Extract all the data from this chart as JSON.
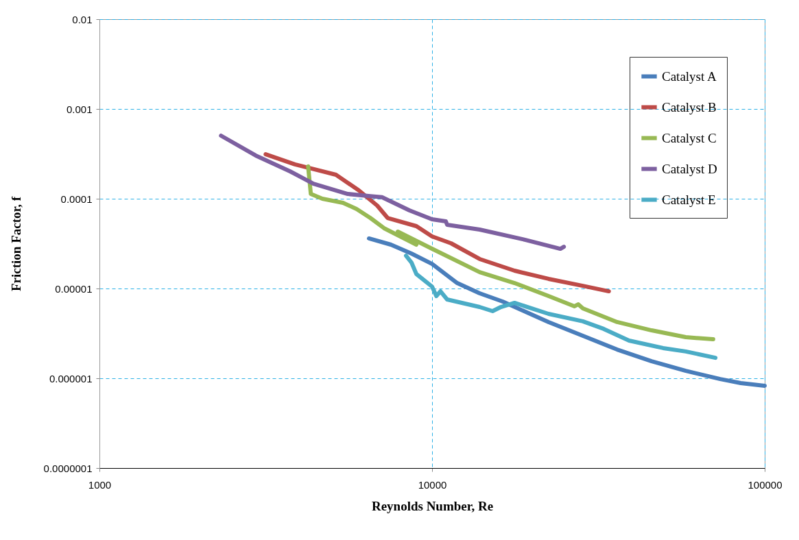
{
  "chart_data": {
    "type": "line",
    "xlabel": "Reynolds Number, Re",
    "ylabel": "Friction Factor, f",
    "log": "xy",
    "grid": true,
    "legend": "top right",
    "line_style": "solid",
    "xlim": [
      1000,
      100000
    ],
    "xticks": [
      1000,
      10000,
      100000
    ],
    "ylim": [
      1e-07,
      0.01
    ],
    "yticks": [
      {
        "value": 1e-07,
        "label": "0.0000001"
      },
      {
        "value": 1e-06,
        "label": "0.000001"
      },
      {
        "value": 1e-05,
        "label": "0.00001"
      },
      0.0001,
      0.001,
      0.01
    ],
    "series": [
      {
        "name": "Catalyst A",
        "color": "#4a7ebb",
        "x": [
          6460,
          7520,
          8670,
          10000,
          11900,
          13900,
          16300,
          19100,
          22400,
          28400,
          36000,
          45700,
          57900,
          73500,
          84700,
          100000
        ],
        "values": [
          3.61e-05,
          3.08e-05,
          2.45e-05,
          1.88e-05,
          1.15e-05,
          8.85e-06,
          7.16e-06,
          5.5e-06,
          4.23e-06,
          2.97e-06,
          2.09e-06,
          1.55e-06,
          1.21e-06,
          9.8e-07,
          8.85e-07,
          8.24e-07
        ]
      },
      {
        "name": "Catalyst B",
        "color": "#be4b48",
        "x": [
          3160,
          3870,
          5140,
          6020,
          6840,
          7350,
          8970,
          10000,
          11400,
          13900,
          17700,
          22400,
          28400,
          34000
        ],
        "values": [
          0.000313,
          0.000241,
          0.000185,
          0.000124,
          8.39e-05,
          6.11e-05,
          4.95e-05,
          3.8e-05,
          3.19e-05,
          2.13e-05,
          1.58e-05,
          1.28e-05,
          1.07e-05,
          9.31e-06
        ]
      },
      {
        "name": "Catalyst C",
        "color": "#98b954",
        "x": [
          4240,
          4320,
          4680,
          5400,
          5930,
          6520,
          7170,
          8970,
          7890,
          10000,
          13900,
          17700,
          22400,
          26800,
          27500,
          28400,
          36000,
          45700,
          57900,
          70000
        ],
        "values": [
          0.000229,
          0.000113,
          0.0001,
          9e-05,
          7.68e-05,
          6.11e-05,
          4.7e-05,
          3.08e-05,
          4.3e-05,
          2.77e-05,
          1.52e-05,
          1.15e-05,
          8.24e-06,
          6.34e-06,
          6.67e-06,
          6.01e-06,
          4.23e-06,
          3.42e-06,
          2.87e-06,
          2.72e-06
        ]
      },
      {
        "name": "Catalyst D",
        "color": "#7d60a0",
        "x": [
          2320,
          2950,
          3740,
          4400,
          5580,
          6520,
          7070,
          8550,
          10000,
          11000,
          11100,
          13900,
          19100,
          24300,
          24900
        ],
        "values": [
          0.000504,
          0.000303,
          0.000202,
          0.000147,
          0.000113,
          0.000107,
          0.000104,
          7.42e-05,
          5.9e-05,
          5.6e-05,
          5.13e-05,
          4.53e-05,
          3.48e-05,
          2.77e-05,
          2.92e-05
        ]
      },
      {
        "name": "Catalyst E",
        "color": "#4bacc6",
        "x": [
          8350,
          8670,
          8970,
          9530,
          10000,
          10300,
          10600,
          11100,
          13900,
          15200,
          16100,
          17700,
          22400,
          28400,
          32800,
          39100,
          49500,
          57900,
          71100
        ],
        "values": [
          2.32e-05,
          1.95e-05,
          1.45e-05,
          1.21e-05,
          1.05e-05,
          8.24e-06,
          9.31e-06,
          7.55e-06,
          6.22e-06,
          5.6e-06,
          6.22e-06,
          6.92e-06,
          5.22e-06,
          4.31e-06,
          3.55e-06,
          2.63e-06,
          2.17e-06,
          1.99e-06,
          1.69e-06
        ]
      }
    ]
  }
}
